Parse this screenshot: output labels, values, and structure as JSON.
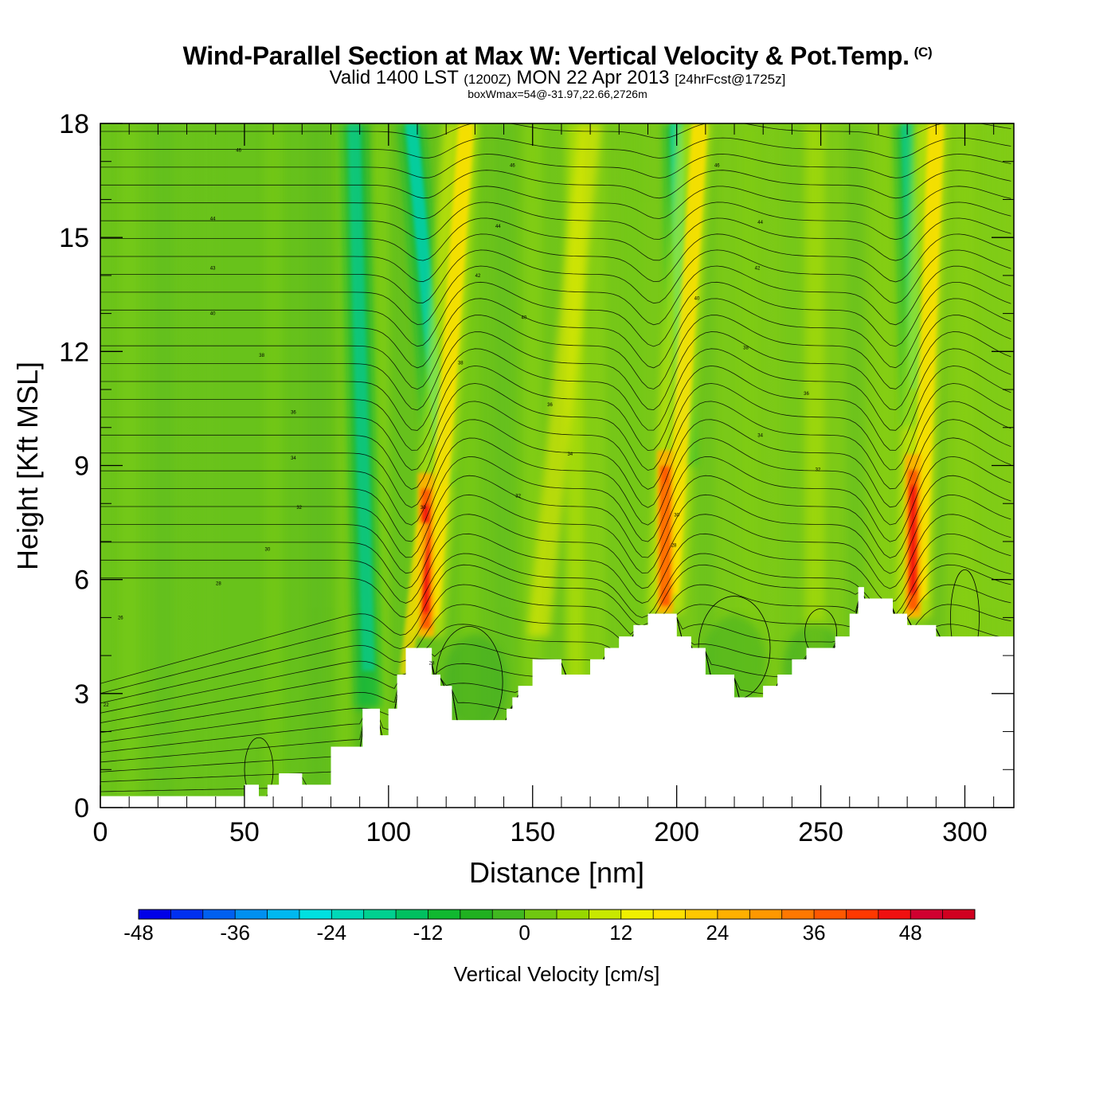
{
  "title": {
    "main": "Wind-Parallel Section at Max W: Vertical Velocity & Pot.Temp.",
    "copyright": "(C)",
    "valid_prefix": "Valid 1400 LST",
    "valid_utc": "(1200Z)",
    "valid_date": "MON 22 Apr 2013",
    "forecast": "[24hrFcst@1725z]",
    "box_info": "boxWmax=54@-31.97,22.66,2726m"
  },
  "chart_data": {
    "type": "heatmap",
    "xlabel": "Distance [nm]",
    "ylabel": "Height [Kft MSL]",
    "xlim": [
      0,
      317
    ],
    "ylim": [
      0,
      18
    ],
    "x_ticks": [
      "0",
      "50",
      "100",
      "150",
      "200",
      "250",
      "300"
    ],
    "y_ticks": [
      "0",
      "3",
      "6",
      "9",
      "12",
      "15",
      "18"
    ],
    "x_tick_values": [
      0,
      50,
      100,
      150,
      200,
      250,
      300
    ],
    "y_tick_values": [
      0,
      3,
      6,
      9,
      12,
      15,
      18
    ],
    "terrain": {
      "x": [
        0,
        50,
        50,
        55,
        58,
        62,
        68,
        70,
        75,
        80,
        82,
        88,
        91,
        95,
        97,
        100,
        103,
        106,
        108,
        112,
        115,
        118,
        120,
        122,
        125,
        130,
        135,
        140,
        141,
        143,
        145,
        150,
        155,
        160,
        165,
        170,
        175,
        180,
        185,
        190,
        195,
        200,
        205,
        210,
        215,
        220,
        225,
        230,
        235,
        240,
        245,
        250,
        255,
        260,
        263,
        265,
        268,
        275,
        280,
        285,
        290,
        300,
        317
      ],
      "height": [
        0.3,
        0.3,
        0.6,
        0.3,
        0.6,
        0.9,
        0.9,
        0.6,
        0.6,
        1.6,
        1.6,
        1.6,
        2.6,
        2.6,
        1.9,
        2.6,
        3.5,
        4.2,
        4.2,
        4.2,
        3.5,
        3.2,
        3.2,
        2.3,
        2.3,
        2.3,
        2.3,
        2.3,
        2.6,
        2.9,
        3.2,
        3.9,
        3.9,
        3.5,
        3.5,
        3.9,
        4.2,
        4.5,
        4.8,
        5.1,
        5.1,
        4.5,
        4.2,
        3.5,
        3.5,
        2.9,
        2.9,
        3.2,
        3.5,
        3.9,
        4.2,
        4.2,
        4.5,
        5.1,
        5.8,
        5.5,
        5.5,
        5.1,
        4.8,
        4.8,
        4.5,
        4.5,
        4.5
      ]
    },
    "plumes": [
      {
        "x_base": 113,
        "top_x": 115,
        "bottom": 4.5,
        "top": 18,
        "lean": 10,
        "core_max": 48
      },
      {
        "x_base": 196,
        "top_x": 198,
        "bottom": 5.1,
        "top": 18,
        "lean": 8,
        "core_max": 40
      },
      {
        "x_base": 282,
        "top_x": 284,
        "bottom": 5.0,
        "top": 18,
        "lean": 4,
        "core_max": 54
      }
    ],
    "downdrafts": [
      {
        "x_base": 118,
        "top_x": 108,
        "bottom": 8.5,
        "top": 18,
        "min": -26
      },
      {
        "x_base": 202,
        "top_x": 200,
        "bottom": 9.0,
        "top": 18,
        "min": -26
      },
      {
        "x_base": 283,
        "top_x": 280,
        "bottom": 10.0,
        "top": 18,
        "min": -20
      },
      {
        "x_base": 93,
        "top_x": 88,
        "bottom": 2.6,
        "top": 18,
        "min": -18
      }
    ],
    "theta_labels": [
      {
        "x": 48,
        "y": 17.3,
        "text": "46"
      },
      {
        "x": 39,
        "y": 15.5,
        "text": "44"
      },
      {
        "x": 39,
        "y": 14.2,
        "text": "43"
      },
      {
        "x": 39,
        "y": 13.0,
        "text": "40"
      },
      {
        "x": 56,
        "y": 11.9,
        "text": "38"
      },
      {
        "x": 67,
        "y": 10.4,
        "text": "36"
      },
      {
        "x": 67,
        "y": 9.2,
        "text": "34"
      },
      {
        "x": 69,
        "y": 7.9,
        "text": "32"
      },
      {
        "x": 58,
        "y": 6.8,
        "text": "30"
      },
      {
        "x": 41,
        "y": 5.9,
        "text": "28"
      },
      {
        "x": 7,
        "y": 5.0,
        "text": "26"
      },
      {
        "x": 2,
        "y": 2.7,
        "text": "22"
      },
      {
        "x": 143,
        "y": 16.9,
        "text": "46"
      },
      {
        "x": 138,
        "y": 15.3,
        "text": "44"
      },
      {
        "x": 131,
        "y": 14.0,
        "text": "42"
      },
      {
        "x": 147,
        "y": 12.9,
        "text": "40"
      },
      {
        "x": 125,
        "y": 11.7,
        "text": "38"
      },
      {
        "x": 156,
        "y": 10.6,
        "text": "36"
      },
      {
        "x": 163,
        "y": 9.3,
        "text": "34"
      },
      {
        "x": 145,
        "y": 8.2,
        "text": "32"
      },
      {
        "x": 112,
        "y": 7.9,
        "text": "30"
      },
      {
        "x": 229,
        "y": 15.4,
        "text": "44"
      },
      {
        "x": 228,
        "y": 14.2,
        "text": "42"
      },
      {
        "x": 214,
        "y": 16.9,
        "text": "46"
      },
      {
        "x": 207,
        "y": 13.4,
        "text": "40"
      },
      {
        "x": 224,
        "y": 12.1,
        "text": "38"
      },
      {
        "x": 245,
        "y": 10.9,
        "text": "36"
      },
      {
        "x": 229,
        "y": 9.8,
        "text": "34"
      },
      {
        "x": 249,
        "y": 8.9,
        "text": "32"
      },
      {
        "x": 200,
        "y": 7.7,
        "text": "30"
      },
      {
        "x": 199,
        "y": 6.9,
        "text": "28"
      },
      {
        "x": 115,
        "y": 3.8,
        "text": "28"
      }
    ]
  },
  "colorbar": {
    "title": "Vertical Velocity [cm/s]",
    "labels": [
      "-48",
      "-36",
      "-24",
      "-12",
      "0",
      "12",
      "24",
      "36",
      "48"
    ],
    "colors": [
      "#0000e8",
      "#0030f0",
      "#0060f0",
      "#0090f0",
      "#00b8f0",
      "#00e0e0",
      "#00d8b8",
      "#00d090",
      "#00c060",
      "#10b830",
      "#20b020",
      "#40b820",
      "#70c810",
      "#98d800",
      "#c8e800",
      "#f0f000",
      "#ffe000",
      "#ffc800",
      "#ffb000",
      "#ff9800",
      "#ff7800",
      "#ff5800",
      "#ff3800",
      "#f01010",
      "#d00030",
      "#d00020"
    ]
  }
}
